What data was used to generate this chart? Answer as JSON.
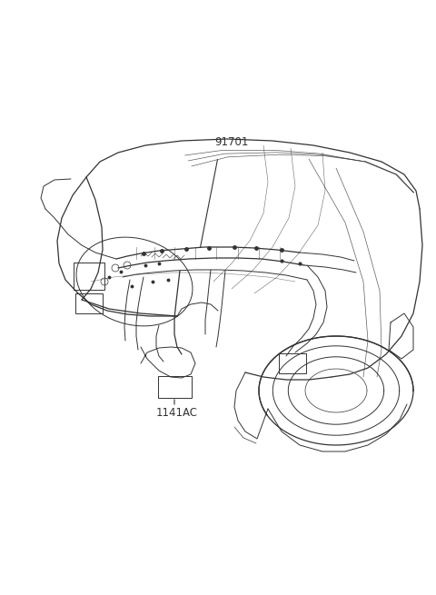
{
  "background_color": "#ffffff",
  "line_color": "#333333",
  "label_91701": "91701",
  "label_1141AC": "1141AC",
  "figsize": [
    4.8,
    6.55
  ],
  "dpi": 100,
  "font_size": 8.5,
  "title_font_size": 7
}
